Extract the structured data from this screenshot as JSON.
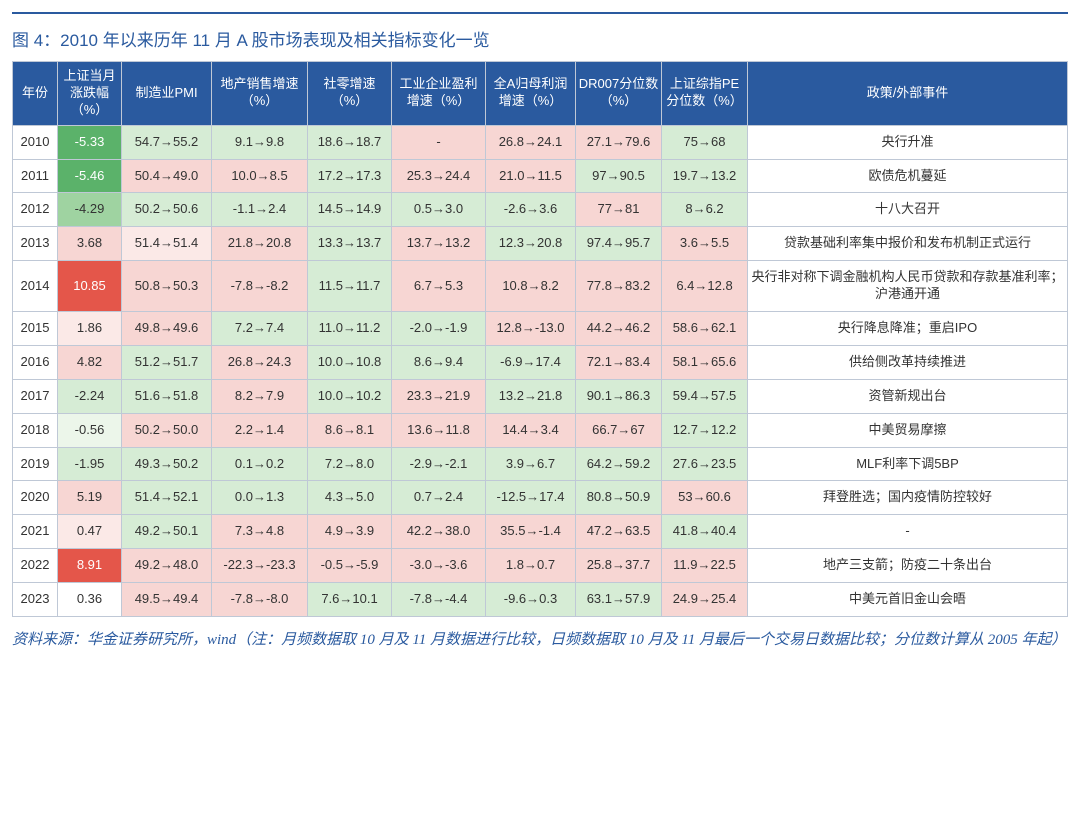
{
  "title": "图 4：2010 年以来历年 11 月 A 股市场表现及相关指标变化一览",
  "headers": [
    "年份",
    "上证当月涨跌幅（%）",
    "制造业PMI",
    "地产销售增速（%）",
    "社零增速（%）",
    "工业企业盈利增速（%）",
    "全A归母利润增速（%）",
    "DR007分位数（%）",
    "上证综指PE分位数（%）",
    "政策/外部事件"
  ],
  "colors": {
    "deep_green": "#5bb26a",
    "mid_green": "#9fd3a1",
    "light_green": "#d6ecd5",
    "pale_green": "#ecf6ea",
    "pink": "#f7d6d3",
    "pale_pink": "#fbe9e7",
    "red": "#e4564a",
    "white": "#ffffff"
  },
  "rows": [
    {
      "year": "2010",
      "chg": "-5.33",
      "chg_c": "deep_green",
      "cells": [
        {
          "t": "54.7→55.2",
          "c": "light_green"
        },
        {
          "t": "9.1→9.8",
          "c": "light_green"
        },
        {
          "t": "18.6→18.7",
          "c": "light_green"
        },
        {
          "t": "-",
          "c": "pink"
        },
        {
          "t": "26.8→24.1",
          "c": "pink"
        },
        {
          "t": "27.1→79.6",
          "c": "pink"
        },
        {
          "t": "75→68",
          "c": "light_green"
        }
      ],
      "event": "央行升准"
    },
    {
      "year": "2011",
      "chg": "-5.46",
      "chg_c": "deep_green",
      "cells": [
        {
          "t": "50.4→49.0",
          "c": "pink"
        },
        {
          "t": "10.0→8.5",
          "c": "pink"
        },
        {
          "t": "17.2→17.3",
          "c": "light_green"
        },
        {
          "t": "25.3→24.4",
          "c": "pink"
        },
        {
          "t": "21.0→11.5",
          "c": "pink"
        },
        {
          "t": "97→90.5",
          "c": "light_green"
        },
        {
          "t": "19.7→13.2",
          "c": "light_green"
        }
      ],
      "event": "欧债危机蔓延"
    },
    {
      "year": "2012",
      "chg": "-4.29",
      "chg_c": "mid_green",
      "cells": [
        {
          "t": "50.2→50.6",
          "c": "light_green"
        },
        {
          "t": "-1.1→2.4",
          "c": "light_green"
        },
        {
          "t": "14.5→14.9",
          "c": "light_green"
        },
        {
          "t": "0.5→3.0",
          "c": "light_green"
        },
        {
          "t": "-2.6→3.6",
          "c": "light_green"
        },
        {
          "t": "77→81",
          "c": "pink"
        },
        {
          "t": "8→6.2",
          "c": "light_green"
        }
      ],
      "event": "十八大召开"
    },
    {
      "year": "2013",
      "chg": "3.68",
      "chg_c": "pink",
      "cells": [
        {
          "t": "51.4→51.4",
          "c": "pale_pink"
        },
        {
          "t": "21.8→20.8",
          "c": "pink"
        },
        {
          "t": "13.3→13.7",
          "c": "light_green"
        },
        {
          "t": "13.7→13.2",
          "c": "pink"
        },
        {
          "t": "12.3→20.8",
          "c": "light_green"
        },
        {
          "t": "97.4→95.7",
          "c": "light_green"
        },
        {
          "t": "3.6→5.5",
          "c": "pink"
        }
      ],
      "event": "贷款基础利率集中报价和发布机制正式运行"
    },
    {
      "year": "2014",
      "chg": "10.85",
      "chg_c": "red",
      "cells": [
        {
          "t": "50.8→50.3",
          "c": "pink"
        },
        {
          "t": "-7.8→-8.2",
          "c": "pink"
        },
        {
          "t": "11.5→11.7",
          "c": "light_green"
        },
        {
          "t": "6.7→5.3",
          "c": "pink"
        },
        {
          "t": "10.8→8.2",
          "c": "pink"
        },
        {
          "t": "77.8→83.2",
          "c": "pink"
        },
        {
          "t": "6.4→12.8",
          "c": "pink"
        }
      ],
      "event": "央行非对称下调金融机构人民币贷款和存款基准利率；沪港通开通"
    },
    {
      "year": "2015",
      "chg": "1.86",
      "chg_c": "pale_pink",
      "cells": [
        {
          "t": "49.8→49.6",
          "c": "pink"
        },
        {
          "t": "7.2→7.4",
          "c": "light_green"
        },
        {
          "t": "11.0→11.2",
          "c": "light_green"
        },
        {
          "t": "-2.0→-1.9",
          "c": "light_green"
        },
        {
          "t": "12.8→-13.0",
          "c": "pink"
        },
        {
          "t": "44.2→46.2",
          "c": "pink"
        },
        {
          "t": "58.6→62.1",
          "c": "pink"
        }
      ],
      "event": "央行降息降准；重启IPO"
    },
    {
      "year": "2016",
      "chg": "4.82",
      "chg_c": "pink",
      "cells": [
        {
          "t": "51.2→51.7",
          "c": "light_green"
        },
        {
          "t": "26.8→24.3",
          "c": "pink"
        },
        {
          "t": "10.0→10.8",
          "c": "light_green"
        },
        {
          "t": "8.6→9.4",
          "c": "light_green"
        },
        {
          "t": "-6.9→17.4",
          "c": "light_green"
        },
        {
          "t": "72.1→83.4",
          "c": "pink"
        },
        {
          "t": "58.1→65.6",
          "c": "pink"
        }
      ],
      "event": "供给侧改革持续推进"
    },
    {
      "year": "2017",
      "chg": "-2.24",
      "chg_c": "light_green",
      "cells": [
        {
          "t": "51.6→51.8",
          "c": "light_green"
        },
        {
          "t": "8.2→7.9",
          "c": "pink"
        },
        {
          "t": "10.0→10.2",
          "c": "light_green"
        },
        {
          "t": "23.3→21.9",
          "c": "pink"
        },
        {
          "t": "13.2→21.8",
          "c": "light_green"
        },
        {
          "t": "90.1→86.3",
          "c": "light_green"
        },
        {
          "t": "59.4→57.5",
          "c": "light_green"
        }
      ],
      "event": "资管新规出台"
    },
    {
      "year": "2018",
      "chg": "-0.56",
      "chg_c": "pale_green",
      "cells": [
        {
          "t": "50.2→50.0",
          "c": "pink"
        },
        {
          "t": "2.2→1.4",
          "c": "pink"
        },
        {
          "t": "8.6→8.1",
          "c": "pink"
        },
        {
          "t": "13.6→11.8",
          "c": "pink"
        },
        {
          "t": "14.4→3.4",
          "c": "pink"
        },
        {
          "t": "66.7→67",
          "c": "pink"
        },
        {
          "t": "12.7→12.2",
          "c": "light_green"
        }
      ],
      "event": "中美贸易摩擦"
    },
    {
      "year": "2019",
      "chg": "-1.95",
      "chg_c": "light_green",
      "cells": [
        {
          "t": "49.3→50.2",
          "c": "light_green"
        },
        {
          "t": "0.1→0.2",
          "c": "light_green"
        },
        {
          "t": "7.2→8.0",
          "c": "light_green"
        },
        {
          "t": "-2.9→-2.1",
          "c": "light_green"
        },
        {
          "t": "3.9→6.7",
          "c": "light_green"
        },
        {
          "t": "64.2→59.2",
          "c": "light_green"
        },
        {
          "t": "27.6→23.5",
          "c": "light_green"
        }
      ],
      "event": "MLF利率下调5BP"
    },
    {
      "year": "2020",
      "chg": "5.19",
      "chg_c": "pink",
      "cells": [
        {
          "t": "51.4→52.1",
          "c": "light_green"
        },
        {
          "t": "0.0→1.3",
          "c": "light_green"
        },
        {
          "t": "4.3→5.0",
          "c": "light_green"
        },
        {
          "t": "0.7→2.4",
          "c": "light_green"
        },
        {
          "t": "-12.5→17.4",
          "c": "light_green"
        },
        {
          "t": "80.8→50.9",
          "c": "light_green"
        },
        {
          "t": "53→60.6",
          "c": "pink"
        }
      ],
      "event": "拜登胜选；国内疫情防控较好"
    },
    {
      "year": "2021",
      "chg": "0.47",
      "chg_c": "pale_pink",
      "cells": [
        {
          "t": "49.2→50.1",
          "c": "light_green"
        },
        {
          "t": "7.3→4.8",
          "c": "pink"
        },
        {
          "t": "4.9→3.9",
          "c": "pink"
        },
        {
          "t": "42.2→38.0",
          "c": "pink"
        },
        {
          "t": "35.5→-1.4",
          "c": "pink"
        },
        {
          "t": "47.2→63.5",
          "c": "pink"
        },
        {
          "t": "41.8→40.4",
          "c": "light_green"
        }
      ],
      "event": "-"
    },
    {
      "year": "2022",
      "chg": "8.91",
      "chg_c": "red",
      "cells": [
        {
          "t": "49.2→48.0",
          "c": "pink"
        },
        {
          "t": "-22.3→-23.3",
          "c": "pink"
        },
        {
          "t": "-0.5→-5.9",
          "c": "pink"
        },
        {
          "t": "-3.0→-3.6",
          "c": "pink"
        },
        {
          "t": "1.8→0.7",
          "c": "pink"
        },
        {
          "t": "25.8→37.7",
          "c": "pink"
        },
        {
          "t": "11.9→22.5",
          "c": "pink"
        }
      ],
      "event": "地产三支箭；防疫二十条出台"
    },
    {
      "year": "2023",
      "chg": "0.36",
      "chg_c": "white",
      "cells": [
        {
          "t": "49.5→49.4",
          "c": "pink"
        },
        {
          "t": "-7.8→-8.0",
          "c": "pink"
        },
        {
          "t": "7.6→10.1",
          "c": "light_green"
        },
        {
          "t": "-7.8→-4.4",
          "c": "light_green"
        },
        {
          "t": "-9.6→0.3",
          "c": "light_green"
        },
        {
          "t": "63.1→57.9",
          "c": "light_green"
        },
        {
          "t": "24.9→25.4",
          "c": "pink"
        }
      ],
      "event": "中美元首旧金山会晤"
    }
  ],
  "footnote": "资料来源：华金证券研究所，wind（注：月频数据取 10 月及 11 月数据进行比较，日频数据取 10 月及 11 月最后一个交易日数据比较；分位数计算从 2005 年起）"
}
